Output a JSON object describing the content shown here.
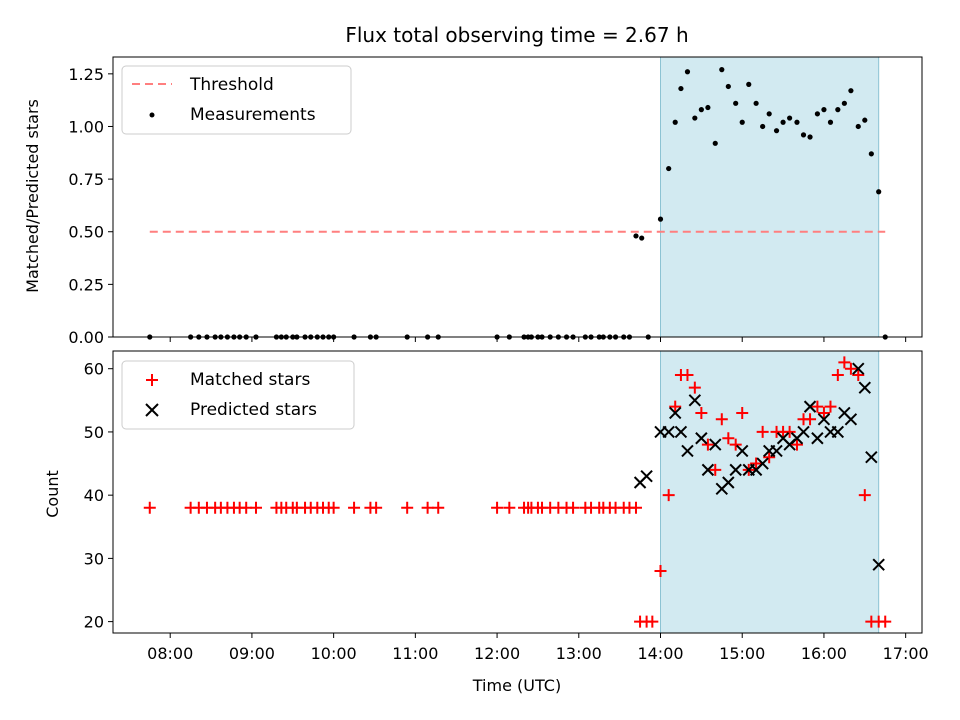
{
  "chart_data": [
    {
      "type": "scatter",
      "title": "Flux total observing time = 2.67 h",
      "ylabel": "Matched/Predicted stars",
      "xlabel": "",
      "xlim": [
        7.3,
        17.2
      ],
      "ylim": [
        0,
        1.33
      ],
      "yticks": [
        0,
        0.25,
        0.5,
        0.75,
        1.0,
        1.25
      ],
      "ytick_labels": [
        "0.00",
        "0.25",
        "0.50",
        "0.75",
        "1.00",
        "1.25"
      ],
      "shaded_region": {
        "x_start": 14.0,
        "x_end": 16.67,
        "color": "#add8e6"
      },
      "threshold": {
        "name": "Threshold",
        "value": 0.5,
        "x_start": 7.75,
        "x_end": 16.75,
        "color": "#ff7f7f"
      },
      "series": [
        {
          "name": "Measurements",
          "marker": "dot",
          "color": "#000000",
          "x": [
            7.75,
            8.25,
            8.35,
            8.45,
            8.55,
            8.62,
            8.7,
            8.78,
            8.85,
            8.93,
            9.05,
            9.3,
            9.36,
            9.42,
            9.5,
            9.55,
            9.65,
            9.72,
            9.8,
            9.87,
            9.94,
            10.0,
            10.25,
            10.45,
            10.52,
            10.9,
            11.15,
            11.28,
            12.0,
            12.15,
            12.33,
            12.38,
            12.42,
            12.5,
            12.55,
            12.65,
            12.75,
            12.85,
            12.93,
            13.08,
            13.15,
            13.25,
            13.3,
            13.38,
            13.45,
            13.55,
            13.62,
            13.7,
            13.77,
            13.85,
            14.0,
            14.1,
            14.18,
            14.25,
            14.33,
            14.42,
            14.5,
            14.58,
            14.67,
            14.75,
            14.83,
            14.92,
            15.0,
            15.08,
            15.17,
            15.25,
            15.33,
            15.42,
            15.5,
            15.58,
            15.67,
            15.75,
            15.83,
            15.92,
            16.0,
            16.08,
            16.17,
            16.25,
            16.33,
            16.42,
            16.5,
            16.58,
            16.67,
            16.75
          ],
          "values": [
            0,
            0,
            0,
            0,
            0,
            0,
            0,
            0,
            0,
            0,
            0,
            0,
            0,
            0,
            0,
            0,
            0,
            0,
            0,
            0,
            0,
            0,
            0,
            0,
            0,
            0,
            0,
            0,
            0,
            0,
            0,
            0,
            0,
            0,
            0,
            0,
            0,
            0,
            0,
            0,
            0,
            0,
            0,
            0,
            0,
            0,
            0,
            0.48,
            0.47,
            0,
            0.56,
            0.8,
            1.02,
            1.18,
            1.26,
            1.04,
            1.08,
            1.09,
            0.92,
            1.27,
            1.19,
            1.11,
            1.02,
            1.2,
            1.11,
            1.0,
            1.06,
            0.98,
            1.02,
            1.04,
            1.02,
            0.96,
            0.95,
            1.06,
            1.08,
            1.02,
            1.08,
            1.11,
            1.17,
            1.0,
            1.03,
            0.87,
            0.69,
            0
          ]
        }
      ],
      "legend": [
        {
          "label": "Threshold",
          "kind": "dashed-line",
          "color": "#ff7f7f"
        },
        {
          "label": "Measurements",
          "kind": "dot",
          "color": "#000000"
        }
      ],
      "legend_loc": "upper-left"
    },
    {
      "type": "scatter",
      "title": "",
      "xlabel": "Time (UTC)",
      "ylabel": "Count",
      "xlim": [
        7.3,
        17.2
      ],
      "ylim": [
        18.2,
        62.8
      ],
      "xticks": [
        8,
        9,
        10,
        11,
        12,
        13,
        14,
        15,
        16,
        17
      ],
      "xtick_labels": [
        "08:00",
        "09:00",
        "10:00",
        "11:00",
        "12:00",
        "13:00",
        "14:00",
        "15:00",
        "16:00",
        "17:00"
      ],
      "yticks": [
        20,
        30,
        40,
        50,
        60
      ],
      "ytick_labels": [
        "20",
        "30",
        "40",
        "50",
        "60"
      ],
      "shaded_region": {
        "x_start": 14.0,
        "x_end": 16.67,
        "color": "#add8e6"
      },
      "series": [
        {
          "name": "Matched stars",
          "marker": "plus",
          "color": "#ff0000",
          "x": [
            7.75,
            8.25,
            8.35,
            8.45,
            8.55,
            8.62,
            8.7,
            8.78,
            8.85,
            8.93,
            9.05,
            9.3,
            9.36,
            9.42,
            9.5,
            9.55,
            9.65,
            9.72,
            9.8,
            9.87,
            9.94,
            10.0,
            10.25,
            10.45,
            10.52,
            10.9,
            11.15,
            11.28,
            12.0,
            12.15,
            12.33,
            12.38,
            12.42,
            12.5,
            12.55,
            12.65,
            12.75,
            12.85,
            12.93,
            13.08,
            13.15,
            13.25,
            13.3,
            13.38,
            13.45,
            13.55,
            13.62,
            13.7,
            13.75,
            13.83,
            13.9,
            14.0,
            14.1,
            14.18,
            14.25,
            14.33,
            14.42,
            14.5,
            14.58,
            14.67,
            14.75,
            14.83,
            14.92,
            15.0,
            15.08,
            15.17,
            15.25,
            15.33,
            15.42,
            15.5,
            15.58,
            15.67,
            15.75,
            15.83,
            15.92,
            16.0,
            16.08,
            16.17,
            16.25,
            16.33,
            16.42,
            16.5,
            16.58,
            16.67,
            16.75
          ],
          "values": [
            38,
            38,
            38,
            38,
            38,
            38,
            38,
            38,
            38,
            38,
            38,
            38,
            38,
            38,
            38,
            38,
            38,
            38,
            38,
            38,
            38,
            38,
            38,
            38,
            38,
            38,
            38,
            38,
            38,
            38,
            38,
            38,
            38,
            38,
            38,
            38,
            38,
            38,
            38,
            38,
            38,
            38,
            38,
            38,
            38,
            38,
            38,
            38,
            20,
            20,
            20,
            28,
            40,
            54,
            59,
            59,
            57,
            53,
            48,
            44,
            52,
            49,
            48,
            53,
            44,
            45,
            50,
            46,
            50,
            50,
            50,
            48,
            52,
            52,
            54,
            53,
            54,
            59,
            61,
            60,
            59,
            40,
            20,
            20,
            20
          ]
        },
        {
          "name": "Predicted stars",
          "marker": "x",
          "color": "#000000",
          "x": [
            13.75,
            13.83,
            14.0,
            14.1,
            14.18,
            14.25,
            14.33,
            14.42,
            14.5,
            14.58,
            14.67,
            14.75,
            14.83,
            14.92,
            15.0,
            15.08,
            15.17,
            15.25,
            15.33,
            15.42,
            15.5,
            15.58,
            15.67,
            15.75,
            15.83,
            15.92,
            16.0,
            16.08,
            16.17,
            16.25,
            16.33,
            16.42,
            16.5,
            16.58,
            16.67
          ],
          "values": [
            42,
            43,
            50,
            50,
            53,
            50,
            47,
            55,
            49,
            44,
            48,
            41,
            42,
            44,
            47,
            44,
            44,
            45,
            47,
            47,
            49,
            48,
            49,
            50,
            54,
            49,
            52,
            50,
            50,
            53,
            52,
            60,
            57,
            46,
            29
          ]
        }
      ],
      "legend": [
        {
          "label": "Matched stars",
          "kind": "plus",
          "color": "#ff0000"
        },
        {
          "label": "Predicted stars",
          "kind": "x",
          "color": "#000000"
        }
      ],
      "legend_loc": "upper-left"
    }
  ]
}
